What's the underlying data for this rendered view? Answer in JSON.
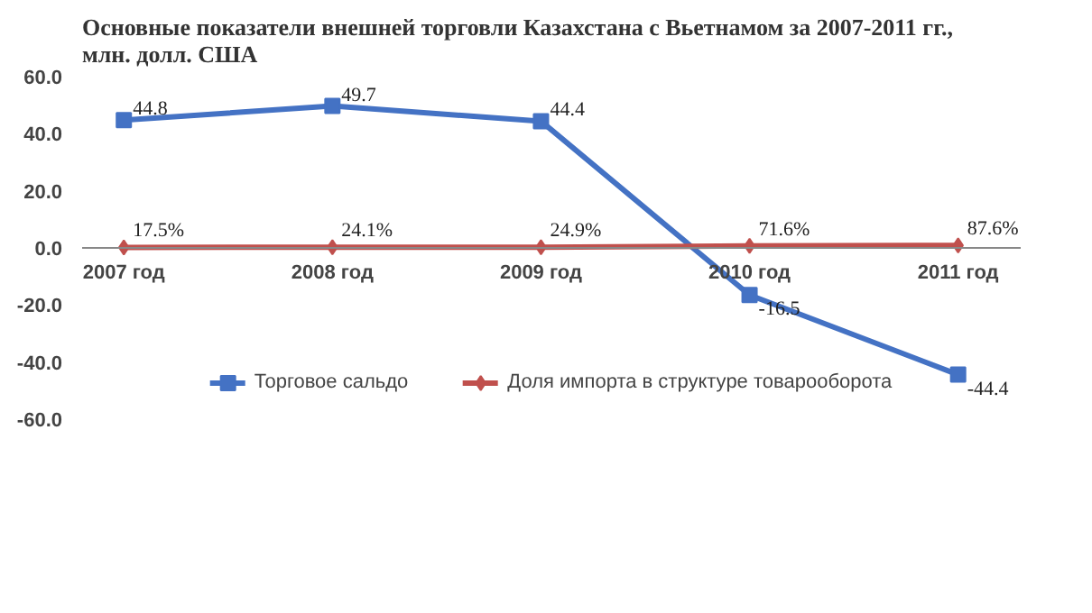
{
  "chart_data": {
    "type": "line",
    "title": "Основные показатели внешней торговли Казахстана с Вьетнамом за 2007-2011 гг., млн. долл. США",
    "categories": [
      "2007 год",
      "2008 год",
      "2009 год",
      "2010 год",
      "2011 год"
    ],
    "series": [
      {
        "name": "Торговое сальдо",
        "color": "#4472c4",
        "marker": "square",
        "values": [
          44.8,
          49.7,
          44.4,
          -16.5,
          -44.4
        ],
        "value_labels": [
          "44.8",
          "49.7",
          "44.4",
          "-16.5",
          "-44.4"
        ]
      },
      {
        "name": "Доля импорта в структуре товарооборота",
        "color": "#c0504d",
        "marker": "diamond",
        "values": [
          0.175,
          0.241,
          0.249,
          0.716,
          0.876
        ],
        "value_labels": [
          "17.5%",
          "24.1%",
          "24.9%",
          "71.6%",
          "87.6%"
        ]
      }
    ],
    "ylim": [
      -60,
      60
    ],
    "yticks": [
      {
        "value": -60,
        "label": "-60.0"
      },
      {
        "value": -40,
        "label": "-40.0"
      },
      {
        "value": -20,
        "label": "-20.0"
      },
      {
        "value": 0,
        "label": "0.0"
      },
      {
        "value": 20,
        "label": "20.0"
      },
      {
        "value": 40,
        "label": "40.0"
      },
      {
        "value": 60,
        "label": "60.0"
      }
    ],
    "grid": false,
    "legend": "bottom"
  }
}
